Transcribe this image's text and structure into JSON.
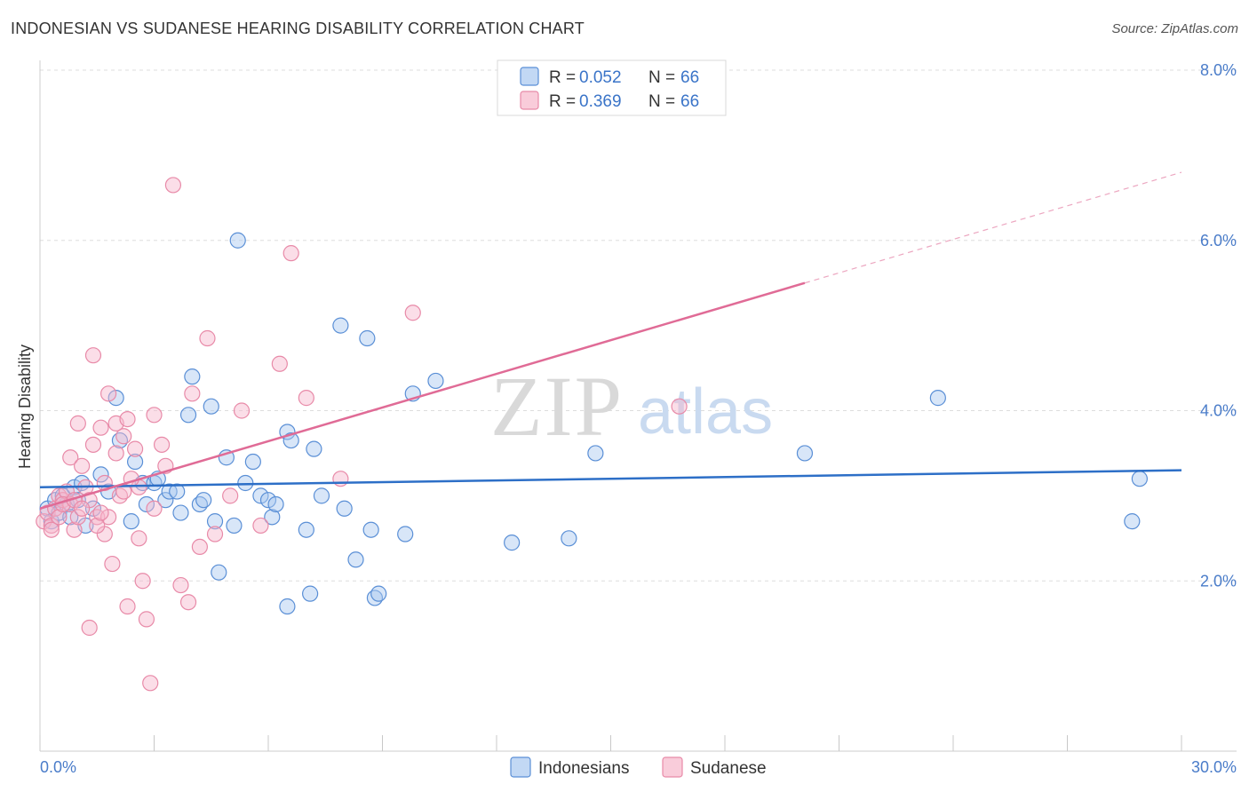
{
  "title": "INDONESIAN VS SUDANESE HEARING DISABILITY CORRELATION CHART",
  "source": "Source: ZipAtlas.com",
  "watermark": {
    "zip": "ZIP",
    "atlas": "atlas"
  },
  "colors": {
    "indonesian_fill": "#a8c8f0",
    "indonesian_stroke": "#5a8fd6",
    "indonesian_line": "#2d6fc7",
    "sudanese_fill": "#f7b6cb",
    "sudanese_stroke": "#e88aa8",
    "sudanese_line": "#e06b96",
    "tick_label": "#4a7cc9",
    "grid": "#dddddd"
  },
  "legend_top": {
    "rows": [
      {
        "r_label": "R = ",
        "r_value": "0.052",
        "n_label": "N = ",
        "n_value": "66"
      },
      {
        "r_label": "R = ",
        "r_value": "0.369",
        "n_label": "N = ",
        "n_value": "66"
      }
    ]
  },
  "legend_bottom": {
    "items": [
      "Indonesians",
      "Sudanese"
    ]
  },
  "chart_data": {
    "type": "scatter",
    "title": "INDONESIAN VS SUDANESE HEARING DISABILITY CORRELATION CHART",
    "xlabel": "",
    "ylabel": "Hearing Disability",
    "xlim": [
      0,
      30
    ],
    "ylim": [
      0,
      8.4
    ],
    "x_tick_labels": [
      {
        "value": 0,
        "label": "0.0%"
      },
      {
        "value": 30,
        "label": "30.0%"
      }
    ],
    "y_tick_labels": [
      {
        "value": 2,
        "label": "2.0%"
      },
      {
        "value": 4,
        "label": "4.0%"
      },
      {
        "value": 6,
        "label": "6.0%"
      },
      {
        "value": 8,
        "label": "8.0%"
      }
    ],
    "grid": "horizontal dashed",
    "legend_placement": "top-center and bottom-center",
    "series": [
      {
        "name": "Indonesians",
        "r": 0.052,
        "n": 66,
        "trend": {
          "x0": 0,
          "y0": 3.1,
          "x1": 30,
          "y1": 3.3,
          "dashed_from": null
        },
        "points": [
          [
            0.2,
            2.85
          ],
          [
            0.3,
            2.7
          ],
          [
            0.4,
            2.95
          ],
          [
            0.5,
            2.8
          ],
          [
            0.6,
            3.0
          ],
          [
            0.7,
            2.9
          ],
          [
            0.8,
            2.75
          ],
          [
            0.9,
            3.1
          ],
          [
            1.0,
            2.95
          ],
          [
            1.1,
            3.15
          ],
          [
            1.2,
            2.65
          ],
          [
            1.4,
            2.85
          ],
          [
            1.6,
            3.25
          ],
          [
            1.8,
            3.05
          ],
          [
            2.0,
            4.15
          ],
          [
            2.1,
            3.65
          ],
          [
            2.4,
            2.7
          ],
          [
            2.5,
            3.4
          ],
          [
            2.7,
            3.15
          ],
          [
            2.8,
            2.9
          ],
          [
            3.0,
            3.15
          ],
          [
            3.1,
            3.2
          ],
          [
            3.3,
            2.95
          ],
          [
            3.4,
            3.05
          ],
          [
            3.6,
            3.05
          ],
          [
            3.7,
            2.8
          ],
          [
            3.9,
            3.95
          ],
          [
            4.0,
            4.4
          ],
          [
            4.2,
            2.9
          ],
          [
            4.3,
            2.95
          ],
          [
            4.5,
            4.05
          ],
          [
            4.6,
            2.7
          ],
          [
            4.7,
            2.1
          ],
          [
            4.9,
            3.45
          ],
          [
            5.1,
            2.65
          ],
          [
            5.2,
            6.0
          ],
          [
            5.4,
            3.15
          ],
          [
            5.6,
            3.4
          ],
          [
            5.8,
            3.0
          ],
          [
            6.0,
            2.95
          ],
          [
            6.1,
            2.75
          ],
          [
            6.2,
            2.9
          ],
          [
            6.5,
            3.75
          ],
          [
            6.6,
            3.65
          ],
          [
            6.5,
            1.7
          ],
          [
            7.0,
            2.6
          ],
          [
            7.1,
            1.85
          ],
          [
            7.2,
            3.55
          ],
          [
            7.4,
            3.0
          ],
          [
            7.9,
            5.0
          ],
          [
            8.0,
            2.85
          ],
          [
            8.3,
            2.25
          ],
          [
            8.6,
            4.85
          ],
          [
            8.7,
            2.6
          ],
          [
            8.8,
            1.8
          ],
          [
            8.9,
            1.85
          ],
          [
            9.6,
            2.55
          ],
          [
            9.8,
            4.2
          ],
          [
            10.4,
            4.35
          ],
          [
            12.4,
            2.45
          ],
          [
            13.9,
            2.5
          ],
          [
            14.6,
            3.5
          ],
          [
            20.1,
            3.5
          ],
          [
            23.6,
            4.15
          ],
          [
            28.7,
            2.7
          ],
          [
            28.9,
            3.2
          ]
        ]
      },
      {
        "name": "Sudanese",
        "r": 0.369,
        "n": 66,
        "trend": {
          "x0": 0,
          "y0": 2.85,
          "x1": 20.1,
          "y1": 5.5,
          "dash_to_x": 30,
          "dash_to_y": 6.8
        },
        "points": [
          [
            0.1,
            2.7
          ],
          [
            0.2,
            2.8
          ],
          [
            0.3,
            2.65
          ],
          [
            0.4,
            2.85
          ],
          [
            0.5,
            3.0
          ],
          [
            0.6,
            2.95
          ],
          [
            0.7,
            3.05
          ],
          [
            0.8,
            2.9
          ],
          [
            0.8,
            3.45
          ],
          [
            0.9,
            2.6
          ],
          [
            1.0,
            3.85
          ],
          [
            1.0,
            2.75
          ],
          [
            1.1,
            3.35
          ],
          [
            1.2,
            3.1
          ],
          [
            1.3,
            2.95
          ],
          [
            1.4,
            4.65
          ],
          [
            1.4,
            3.6
          ],
          [
            1.5,
            2.75
          ],
          [
            1.6,
            3.8
          ],
          [
            1.7,
            3.15
          ],
          [
            1.7,
            2.55
          ],
          [
            1.8,
            4.2
          ],
          [
            1.8,
            2.75
          ],
          [
            1.9,
            2.2
          ],
          [
            2.0,
            3.5
          ],
          [
            2.0,
            3.85
          ],
          [
            2.1,
            3.0
          ],
          [
            2.2,
            3.7
          ],
          [
            2.3,
            3.9
          ],
          [
            2.3,
            1.7
          ],
          [
            2.5,
            3.55
          ],
          [
            2.6,
            3.1
          ],
          [
            2.6,
            2.5
          ],
          [
            2.7,
            2.0
          ],
          [
            2.8,
            1.55
          ],
          [
            2.9,
            0.8
          ],
          [
            3.0,
            2.85
          ],
          [
            3.0,
            3.95
          ],
          [
            3.2,
            3.6
          ],
          [
            3.3,
            3.35
          ],
          [
            3.5,
            6.65
          ],
          [
            3.7,
            1.95
          ],
          [
            3.9,
            1.75
          ],
          [
            4.0,
            4.2
          ],
          [
            4.2,
            2.4
          ],
          [
            4.4,
            4.85
          ],
          [
            4.6,
            2.55
          ],
          [
            5.0,
            3.0
          ],
          [
            5.3,
            4.0
          ],
          [
            5.8,
            2.65
          ],
          [
            6.3,
            4.55
          ],
          [
            6.6,
            5.85
          ],
          [
            7.0,
            4.15
          ],
          [
            7.9,
            3.2
          ],
          [
            9.8,
            5.15
          ],
          [
            16.8,
            4.05
          ],
          [
            1.3,
            1.45
          ],
          [
            0.3,
            2.6
          ],
          [
            0.5,
            2.75
          ],
          [
            0.6,
            2.9
          ],
          [
            0.9,
            2.95
          ],
          [
            1.1,
            2.85
          ],
          [
            1.5,
            2.65
          ],
          [
            1.6,
            2.8
          ],
          [
            2.4,
            3.2
          ],
          [
            2.2,
            3.05
          ]
        ]
      }
    ]
  }
}
